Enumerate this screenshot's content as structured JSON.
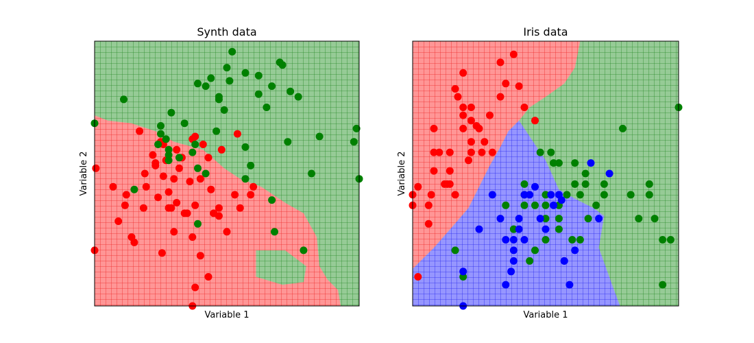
{
  "chart_data": [
    {
      "type": "scatter",
      "title": "Synth data",
      "xlabel": "Variable 1",
      "ylabel": "Variable 2",
      "xlim": [
        0,
        1
      ],
      "ylim": [
        0,
        1
      ],
      "xticks": "none",
      "yticks": "none",
      "grid": true,
      "legend": "none",
      "colors": {
        "red": "#ff0000",
        "green": "#008000",
        "region_red": "#ff9696",
        "region_green": "#96cb96",
        "grid_red": "#e60000",
        "grid_green": "#007300"
      },
      "regions": [
        {
          "class": "red",
          "polygon": [
            [
              0,
              0.72
            ],
            [
              0.05,
              0.7
            ],
            [
              0.14,
              0.69
            ],
            [
              0.23,
              0.66
            ],
            [
              0.3,
              0.62
            ],
            [
              0.41,
              0.59
            ],
            [
              0.49,
              0.52
            ],
            [
              0.55,
              0.48
            ],
            [
              0.63,
              0.45
            ],
            [
              0.72,
              0.39
            ],
            [
              0.79,
              0.35
            ],
            [
              0.84,
              0.26
            ],
            [
              0.85,
              0.15
            ],
            [
              0.88,
              0.1
            ],
            [
              0.92,
              0.06
            ],
            [
              0.93,
              0
            ],
            [
              0,
              0
            ]
          ]
        },
        {
          "class": "green",
          "polygon": [
            [
              0.61,
              0.21
            ],
            [
              0.72,
              0.21
            ],
            [
              0.8,
              0.15
            ],
            [
              0.79,
              0.09
            ],
            [
              0.71,
              0.08
            ],
            [
              0.61,
              0.11
            ]
          ]
        }
      ],
      "series": [
        {
          "class": "red",
          "x": [
            0.005,
            0.07,
            0.115,
            0.15,
            0.185,
            0.195,
            0.22,
            0.23,
            0.25,
            0.26,
            0.27,
            0.28,
            0.29,
            0.3,
            0.31,
            0.34,
            0.36,
            0.38,
            0.41,
            0.44,
            0.47,
            0.48,
            0.53,
            0.55,
            0.19,
            0.24,
            0.26,
            0.31,
            0.33,
            0.37,
            0.4,
            0.38,
            0.43,
            0.45,
            0.5,
            0.09,
            0.12,
            0.17,
            0.23,
            0.28,
            0.32,
            0.37,
            0.43,
            0.54,
            0.6,
            0.47,
            0.4,
            0.3,
            0.35,
            0.255,
            0.37,
            0.38,
            0.59,
            0.14,
            0.0
          ],
          "y": [
            0.52,
            0.45,
            0.38,
            0.24,
            0.37,
            0.45,
            0.57,
            0.53,
            0.62,
            0.49,
            0.55,
            0.43,
            0.37,
            0.28,
            0.39,
            0.35,
            0.47,
            0.64,
            0.61,
            0.44,
            0.34,
            0.59,
            0.42,
            0.37,
            0.5,
            0.41,
            0.61,
            0.59,
            0.56,
            0.26,
            0.19,
            0.07,
            0.11,
            0.35,
            0.28,
            0.32,
            0.42,
            0.66,
            0.54,
            0.37,
            0.52,
            0.63,
            0.56,
            0.65,
            0.45,
            0.37,
            0.48,
            0.48,
            0.35,
            0.2,
            0.0,
            0.38,
            0.42,
            0.26,
            0.21
          ]
        },
        {
          "class": "green",
          "x": [
            0.0,
            0.11,
            0.25,
            0.24,
            0.25,
            0.28,
            0.29,
            0.34,
            0.38,
            0.39,
            0.42,
            0.44,
            0.47,
            0.49,
            0.5,
            0.52,
            0.57,
            0.62,
            0.62,
            0.65,
            0.67,
            0.7,
            0.71,
            0.74,
            0.77,
            0.85,
            0.98,
            0.99,
            0.67,
            0.59,
            0.57,
            0.39,
            0.39,
            0.28,
            0.47,
            0.51,
            0.57,
            0.46,
            0.37,
            0.32,
            0.27,
            0.15,
            0.28,
            0.42,
            0.79,
            1.0,
            0.82,
            0.73,
            0.68
          ],
          "y": [
            0.69,
            0.78,
            0.65,
            0.61,
            0.68,
            0.57,
            0.73,
            0.69,
            0.61,
            0.84,
            0.83,
            0.86,
            0.78,
            0.74,
            0.9,
            0.96,
            0.88,
            0.8,
            0.87,
            0.75,
            0.83,
            0.92,
            0.91,
            0.81,
            0.79,
            0.64,
            0.62,
            0.67,
            0.4,
            0.53,
            0.48,
            0.31,
            0.52,
            0.55,
            0.79,
            0.85,
            0.6,
            0.66,
            0.58,
            0.56,
            0.63,
            0.44,
            0.59,
            0.5,
            0.21,
            0.48,
            0.5,
            0.62,
            0.28
          ]
        }
      ]
    },
    {
      "type": "scatter",
      "title": "Iris data",
      "xlabel": "Variable 1",
      "ylabel": "Variable 2",
      "xlim": [
        0,
        1
      ],
      "ylim": [
        0,
        1
      ],
      "xticks": "none",
      "yticks": "none",
      "grid": true,
      "legend": "none",
      "colors": {
        "red": "#ff0000",
        "green": "#008000",
        "blue": "#0000ff",
        "region_red": "#ff9696",
        "region_green": "#96cb96",
        "region_blue": "#9696ff",
        "grid_red": "#e60000",
        "grid_green": "#007300",
        "grid_blue": "#0000e6"
      },
      "regions": [
        {
          "class": "red",
          "polygon": [
            [
              0,
              1
            ],
            [
              0.63,
              1
            ],
            [
              0.61,
              0.9
            ],
            [
              0.57,
              0.84
            ],
            [
              0.5,
              0.79
            ],
            [
              0.44,
              0.75
            ],
            [
              0.4,
              0.7
            ],
            [
              0.36,
              0.66
            ],
            [
              0.33,
              0.6
            ],
            [
              0.29,
              0.53
            ],
            [
              0.25,
              0.45
            ],
            [
              0.21,
              0.37
            ],
            [
              0.15,
              0.3
            ],
            [
              0.08,
              0.22
            ],
            [
              0,
              0.14
            ]
          ]
        },
        {
          "class": "blue",
          "polygon": [
            [
              0,
              0.14
            ],
            [
              0.08,
              0.22
            ],
            [
              0.15,
              0.3
            ],
            [
              0.21,
              0.37
            ],
            [
              0.25,
              0.45
            ],
            [
              0.29,
              0.53
            ],
            [
              0.33,
              0.6
            ],
            [
              0.36,
              0.66
            ],
            [
              0.4,
              0.7
            ],
            [
              0.46,
              0.61
            ],
            [
              0.5,
              0.55
            ],
            [
              0.55,
              0.44
            ],
            [
              0.62,
              0.4
            ],
            [
              0.68,
              0.37
            ],
            [
              0.72,
              0.34
            ],
            [
              0.7,
              0.22
            ],
            [
              0.75,
              0.08
            ],
            [
              0.78,
              0
            ],
            [
              0,
              0
            ]
          ]
        }
      ],
      "series": [
        {
          "class": "red",
          "x": [
            0.0,
            0.02,
            0.06,
            0.08,
            0.08,
            0.08,
            0.14,
            0.14,
            0.14,
            0.17,
            0.19,
            0.19,
            0.19,
            0.19,
            0.22,
            0.22,
            0.22,
            0.22,
            0.25,
            0.26,
            0.27,
            0.29,
            0.3,
            0.33,
            0.33,
            0.35,
            0.38,
            0.42,
            0.46,
            0.07,
            0.1,
            0.12,
            0.16,
            0.21,
            0.24,
            0.4,
            0.16,
            0.0,
            0.13,
            0.02,
            0.06
          ],
          "y": [
            0.42,
            0.45,
            0.38,
            0.67,
            0.58,
            0.51,
            0.58,
            0.51,
            0.46,
            0.79,
            0.88,
            0.75,
            0.72,
            0.67,
            0.75,
            0.7,
            0.62,
            0.58,
            0.67,
            0.58,
            0.62,
            0.72,
            0.58,
            0.79,
            0.92,
            0.84,
            0.95,
            0.75,
            0.7,
            0.42,
            0.58,
            0.46,
            0.82,
            0.55,
            0.68,
            0.83,
            0.42,
            0.38,
            0.46,
            0.11,
            0.31
          ]
        },
        {
          "class": "green",
          "x": [
            0.16,
            0.19,
            0.35,
            0.38,
            0.42,
            0.42,
            0.44,
            0.46,
            0.5,
            0.5,
            0.5,
            0.52,
            0.55,
            0.55,
            0.55,
            0.58,
            0.61,
            0.61,
            0.63,
            0.63,
            0.65,
            0.65,
            0.69,
            0.72,
            0.72,
            0.79,
            0.82,
            0.85,
            0.89,
            0.89,
            0.91,
            0.94,
            0.94,
            0.97,
            1.0,
            0.55,
            0.48,
            0.53,
            0.6,
            0.66,
            0.5,
            0.42,
            0.38,
            0.46
          ],
          "y": [
            0.21,
            0.11,
            0.38,
            0.29,
            0.42,
            0.38,
            0.17,
            0.38,
            0.38,
            0.42,
            0.33,
            0.58,
            0.54,
            0.38,
            0.29,
            0.42,
            0.54,
            0.46,
            0.42,
            0.25,
            0.46,
            0.5,
            0.38,
            0.46,
            0.42,
            0.67,
            0.42,
            0.33,
            0.42,
            0.46,
            0.33,
            0.25,
            0.08,
            0.25,
            0.75,
            0.33,
            0.58,
            0.54,
            0.25,
            0.33,
            0.25,
            0.46,
            0.29,
            0.21
          ]
        },
        {
          "class": "blue",
          "x": [
            0.19,
            0.19,
            0.25,
            0.3,
            0.33,
            0.35,
            0.35,
            0.37,
            0.38,
            0.38,
            0.38,
            0.4,
            0.4,
            0.42,
            0.44,
            0.48,
            0.5,
            0.53,
            0.55,
            0.57,
            0.57,
            0.61,
            0.67,
            0.7,
            0.74,
            0.59,
            0.46,
            0.52,
            0.56,
            0.42
          ],
          "y": [
            0.0,
            0.13,
            0.29,
            0.42,
            0.33,
            0.25,
            0.08,
            0.13,
            0.17,
            0.21,
            0.25,
            0.29,
            0.33,
            0.25,
            0.42,
            0.33,
            0.29,
            0.38,
            0.42,
            0.17,
            0.17,
            0.21,
            0.54,
            0.33,
            0.5,
            0.08,
            0.45,
            0.42,
            0.4,
            0.42
          ]
        }
      ]
    }
  ]
}
